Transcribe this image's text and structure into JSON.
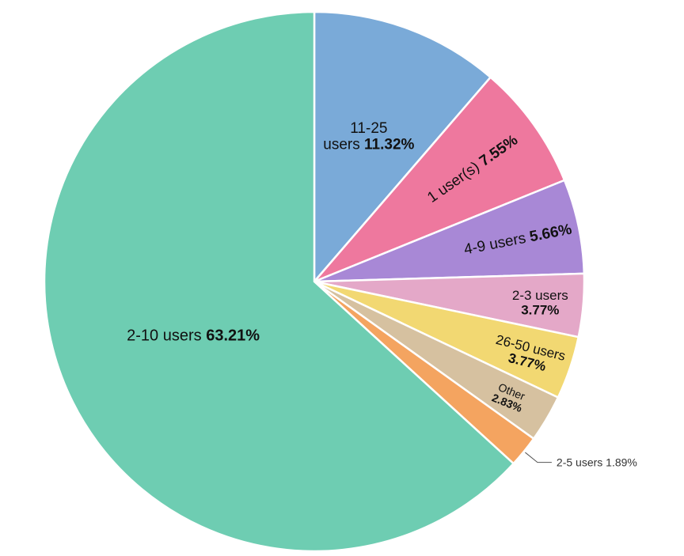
{
  "chart_data": {
    "type": "pie",
    "slices": [
      {
        "label": "11-25 users",
        "value": 11.32,
        "value_label": "11.32%",
        "color": "#7aaad8"
      },
      {
        "label": "1 user(s)",
        "value": 7.55,
        "value_label": "7.55%",
        "color": "#ee789e"
      },
      {
        "label": "4-9 users",
        "value": 5.66,
        "value_label": "5.66%",
        "color": "#a888d6"
      },
      {
        "label": "2-3 users",
        "value": 3.77,
        "value_label": "3.77%",
        "color": "#e4a8c8"
      },
      {
        "label": "26-50 users",
        "value": 3.77,
        "value_label": "3.77%",
        "color": "#f2d872"
      },
      {
        "label": "Other",
        "value": 2.83,
        "value_label": "2.83%",
        "color": "#d6c1a0"
      },
      {
        "label": "2-5 users",
        "value": 1.89,
        "value_label": "1.89%",
        "color": "#f4a460"
      },
      {
        "label": "2-10 users",
        "value": 63.21,
        "value_label": "63.21%",
        "color": "#6ecdb2"
      }
    ]
  }
}
